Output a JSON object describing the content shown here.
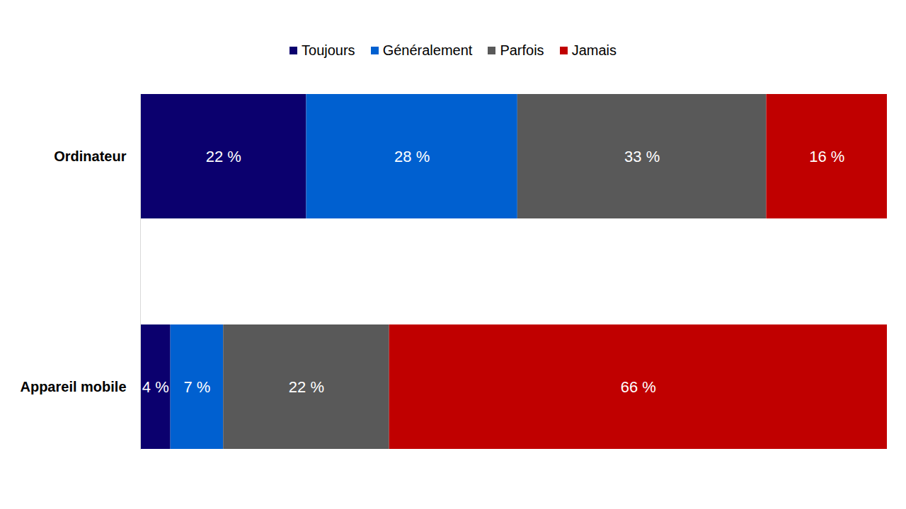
{
  "chart_data": {
    "type": "bar",
    "orientation": "horizontal",
    "stacked": true,
    "data_labels": true,
    "tick_labels": "y",
    "legend": "top",
    "categories": [
      "Ordinateur",
      "Appareil mobile"
    ],
    "xlim": [
      0,
      99
    ],
    "series": [
      {
        "name": "Toujours",
        "color": "#0b006e",
        "values": [
          22,
          4
        ],
        "value_labels": [
          "22 %",
          "4 %"
        ]
      },
      {
        "name": "Généralement",
        "color": "#0060d0",
        "values": [
          28,
          7
        ],
        "value_labels": [
          "28 %",
          "7 %"
        ]
      },
      {
        "name": "Parfois",
        "color": "#595959",
        "values": [
          33,
          22
        ],
        "value_labels": [
          "33 %",
          "22 %"
        ]
      },
      {
        "name": "Jamais",
        "color": "#c00000",
        "values": [
          16,
          66
        ],
        "value_labels": [
          "16 %",
          "66 %"
        ]
      }
    ]
  }
}
